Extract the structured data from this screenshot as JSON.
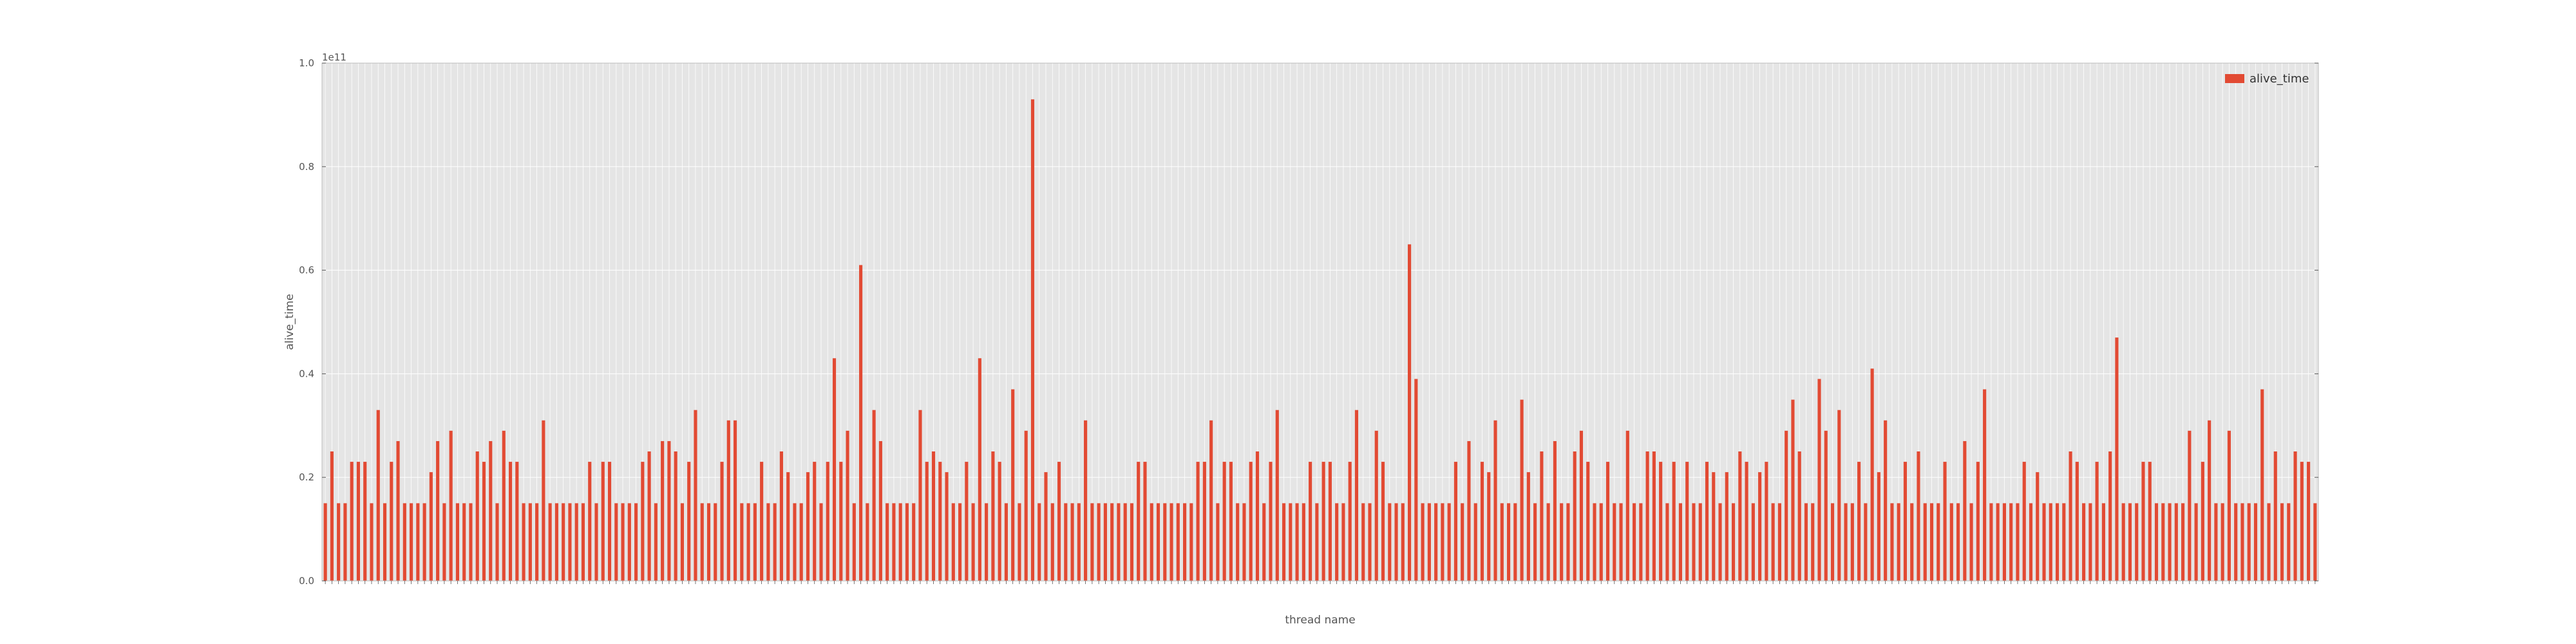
{
  "chart_data": {
    "type": "bar",
    "xlabel": "thread name",
    "ylabel": "alive_time",
    "y_offset_label": "1e11",
    "ylim": [
      0,
      1.0
    ],
    "yticks": [
      "0.0",
      "0.2",
      "0.4",
      "0.6",
      "0.8",
      "1.0"
    ],
    "grid": true,
    "legend_position": "top-right",
    "series": [
      {
        "name": "alive_time",
        "color": "#e24a33",
        "values": [
          0.15,
          0.25,
          0.15,
          0.15,
          0.23,
          0.23,
          0.23,
          0.15,
          0.33,
          0.15,
          0.23,
          0.27,
          0.15,
          0.15,
          0.15,
          0.15,
          0.21,
          0.27,
          0.15,
          0.29,
          0.15,
          0.15,
          0.15,
          0.25,
          0.23,
          0.27,
          0.15,
          0.29,
          0.23,
          0.23,
          0.15,
          0.15,
          0.15,
          0.31,
          0.15,
          0.15,
          0.15,
          0.15,
          0.15,
          0.15,
          0.23,
          0.15,
          0.23,
          0.23,
          0.15,
          0.15,
          0.15,
          0.15,
          0.23,
          0.25,
          0.15,
          0.27,
          0.27,
          0.25,
          0.15,
          0.23,
          0.33,
          0.15,
          0.15,
          0.15,
          0.23,
          0.31,
          0.31,
          0.15,
          0.15,
          0.15,
          0.23,
          0.15,
          0.15,
          0.25,
          0.21,
          0.15,
          0.15,
          0.21,
          0.23,
          0.15,
          0.23,
          0.43,
          0.23,
          0.29,
          0.15,
          0.61,
          0.15,
          0.33,
          0.27,
          0.15,
          0.15,
          0.15,
          0.15,
          0.15,
          0.33,
          0.23,
          0.25,
          0.23,
          0.21,
          0.15,
          0.15,
          0.23,
          0.15,
          0.43,
          0.15,
          0.25,
          0.23,
          0.15,
          0.37,
          0.15,
          0.29,
          0.93,
          0.15,
          0.21,
          0.15,
          0.23,
          0.15,
          0.15,
          0.15,
          0.31,
          0.15,
          0.15,
          0.15,
          0.15,
          0.15,
          0.15,
          0.15,
          0.23,
          0.23,
          0.15,
          0.15,
          0.15,
          0.15,
          0.15,
          0.15,
          0.15,
          0.23,
          0.23,
          0.31,
          0.15,
          0.23,
          0.23,
          0.15,
          0.15,
          0.23,
          0.25,
          0.15,
          0.23,
          0.33,
          0.15,
          0.15,
          0.15,
          0.15,
          0.23,
          0.15,
          0.23,
          0.23,
          0.15,
          0.15,
          0.23,
          0.33,
          0.15,
          0.15,
          0.29,
          0.23,
          0.15,
          0.15,
          0.15,
          0.65,
          0.39,
          0.15,
          0.15,
          0.15,
          0.15,
          0.15,
          0.23,
          0.15,
          0.27,
          0.15,
          0.23,
          0.21,
          0.31,
          0.15,
          0.15,
          0.15,
          0.35,
          0.21,
          0.15,
          0.25,
          0.15,
          0.27,
          0.15,
          0.15,
          0.25,
          0.29,
          0.23,
          0.15,
          0.15,
          0.23,
          0.15,
          0.15,
          0.29,
          0.15,
          0.15,
          0.25,
          0.25,
          0.23,
          0.15,
          0.23,
          0.15,
          0.23,
          0.15,
          0.15,
          0.23,
          0.21,
          0.15,
          0.21,
          0.15,
          0.25,
          0.23,
          0.15,
          0.21,
          0.23,
          0.15,
          0.15,
          0.29,
          0.35,
          0.25,
          0.15,
          0.15,
          0.39,
          0.29,
          0.15,
          0.33,
          0.15,
          0.15,
          0.23,
          0.15,
          0.41,
          0.21,
          0.31,
          0.15,
          0.15,
          0.23,
          0.15,
          0.25,
          0.15,
          0.15,
          0.15,
          0.23,
          0.15,
          0.15,
          0.27,
          0.15,
          0.23,
          0.37,
          0.15,
          0.15,
          0.15,
          0.15,
          0.15,
          0.23,
          0.15,
          0.21,
          0.15,
          0.15,
          0.15,
          0.15,
          0.25,
          0.23,
          0.15,
          0.15,
          0.23,
          0.15,
          0.25,
          0.47,
          0.15,
          0.15,
          0.15,
          0.23,
          0.23,
          0.15,
          0.15,
          0.15,
          0.15,
          0.15,
          0.29,
          0.15,
          0.23,
          0.31,
          0.15,
          0.15,
          0.29,
          0.15,
          0.15,
          0.15,
          0.15,
          0.37,
          0.15,
          0.25,
          0.15,
          0.15,
          0.25,
          0.23,
          0.23,
          0.15
        ]
      }
    ]
  }
}
